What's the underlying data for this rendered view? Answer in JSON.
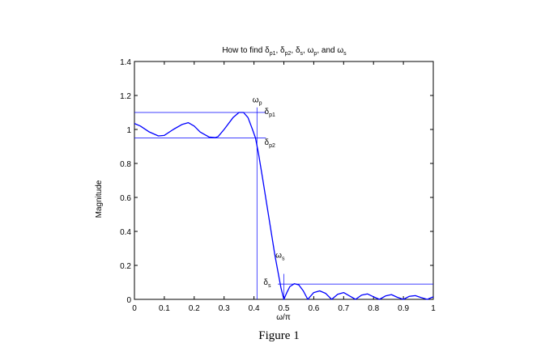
{
  "chart_data": {
    "type": "line",
    "title_parts": [
      {
        "text": "How to find δ"
      },
      {
        "text": "p1",
        "sub": true
      },
      {
        "text": ", δ"
      },
      {
        "text": "p2",
        "sub": true
      },
      {
        "text": ", δ"
      },
      {
        "text": "s",
        "sub": true
      },
      {
        "text": ", ω"
      },
      {
        "text": "p",
        "sub": true
      },
      {
        "text": ", and ω"
      },
      {
        "text": "s",
        "sub": true
      }
    ],
    "xlabel": "ω/π",
    "ylabel": "Magnitude",
    "xlim": [
      0,
      1
    ],
    "ylim": [
      0,
      1.4
    ],
    "xticks": [
      0,
      0.1,
      0.2,
      0.3,
      0.4,
      0.5,
      0.6,
      0.7,
      0.8,
      0.9,
      1
    ],
    "xtick_labels": [
      "0",
      "0.1",
      "0.2",
      "0.3",
      "0.4",
      "0.5",
      "0.6",
      "0.7",
      "0.8",
      "0.9",
      "1"
    ],
    "yticks": [
      0,
      0.2,
      0.4,
      0.6,
      0.8,
      1,
      1.2,
      1.4
    ],
    "ytick_labels": [
      "0",
      "0.2",
      "0.4",
      "0.6",
      "0.8",
      "1",
      "1.2",
      "1.4"
    ],
    "grid": false,
    "line_color": "#0000ff",
    "series": [
      {
        "x": [
          0,
          0.02,
          0.05,
          0.08,
          0.1,
          0.13,
          0.16,
          0.18,
          0.2,
          0.22,
          0.25,
          0.27,
          0.28,
          0.3,
          0.33,
          0.35,
          0.365,
          0.38,
          0.395,
          0.405,
          0.415,
          0.43,
          0.45,
          0.47,
          0.49,
          0.5,
          0.51,
          0.52,
          0.535,
          0.55,
          0.565,
          0.58,
          0.6,
          0.62,
          0.64,
          0.66,
          0.68,
          0.7,
          0.72,
          0.74,
          0.76,
          0.78,
          0.8,
          0.82,
          0.84,
          0.86,
          0.88,
          0.9,
          0.92,
          0.94,
          0.96,
          0.98,
          1.0
        ],
        "y": [
          1.035,
          1.02,
          0.985,
          0.962,
          0.965,
          1.0,
          1.03,
          1.04,
          1.02,
          0.985,
          0.955,
          0.952,
          0.958,
          1.0,
          1.07,
          1.1,
          1.1,
          1.07,
          1.0,
          0.95,
          0.86,
          0.7,
          0.48,
          0.26,
          0.07,
          0.0,
          0.04,
          0.075,
          0.092,
          0.085,
          0.05,
          0.0,
          0.04,
          0.05,
          0.035,
          0.0,
          0.03,
          0.04,
          0.02,
          0.0,
          0.025,
          0.032,
          0.015,
          0.0,
          0.02,
          0.028,
          0.012,
          0.0,
          0.018,
          0.022,
          0.01,
          0.0,
          0.015
        ]
      }
    ],
    "reference_lines": {
      "delta_p1": 1.1,
      "delta_p2": 0.95,
      "delta_s": 0.09,
      "omega_p": 0.41,
      "omega_s": 0.5
    },
    "annotations": [
      {
        "id": "ann-omega-p",
        "base": "ω",
        "sub": "p"
      },
      {
        "id": "ann-delta-p1",
        "base": "δ",
        "sub": "p1"
      },
      {
        "id": "ann-delta-p2",
        "base": "δ",
        "sub": "p2"
      },
      {
        "id": "ann-omega-s",
        "base": "ω",
        "sub": "s"
      },
      {
        "id": "ann-delta-s",
        "base": "δ",
        "sub": "s"
      }
    ]
  },
  "caption": "Figure 1"
}
